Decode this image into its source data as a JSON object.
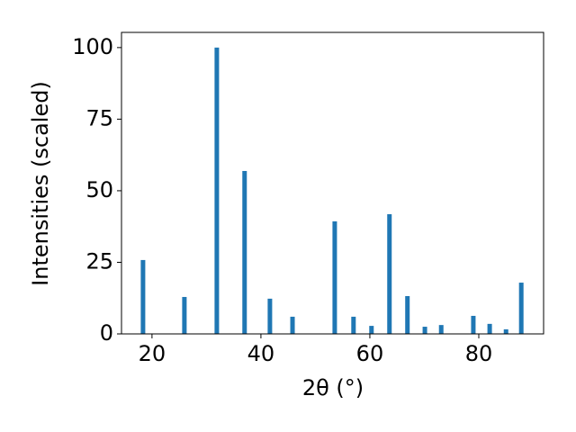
{
  "chart_data": {
    "type": "bar",
    "x_label": "2θ (°)",
    "y_label": "Intensities (scaled)",
    "x": [
      18.35,
      25.95,
      31.9,
      37.0,
      41.65,
      45.8,
      53.55,
      57.0,
      60.3,
      63.6,
      66.9,
      70.1,
      73.1,
      79.0,
      82.0,
      85.0,
      87.8
    ],
    "values": [
      25.8,
      12.9,
      100,
      56.9,
      12.3,
      6.0,
      39.3,
      6.0,
      2.8,
      41.8,
      13.2,
      2.5,
      3.1,
      6.3,
      3.5,
      1.6,
      17.9
    ],
    "color": "#1f77b4",
    "xlim": [
      14.4,
      91.9
    ],
    "ylim": [
      0,
      105.3
    ],
    "xticks": [
      20,
      40,
      60,
      80
    ],
    "yticks": [
      0,
      25,
      50,
      75,
      100
    ]
  }
}
